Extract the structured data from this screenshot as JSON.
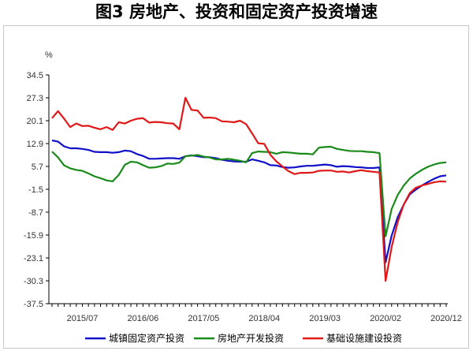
{
  "title": "图3  房地产、投资和固定资产投资增速",
  "chart_data": {
    "type": "line",
    "ylabel": "%",
    "ylim": [
      -37.5,
      34.5
    ],
    "yticks": [
      34.5,
      27.3,
      20.1,
      12.9,
      5.7,
      -1.5,
      -8.7,
      -15.9,
      -23.1,
      -30.3,
      -37.5
    ],
    "xticks": [
      "2015/07",
      "2016/06",
      "2017/05",
      "2018/04",
      "2019/03",
      "2020/02",
      "2020/12"
    ],
    "x": [
      "2015/02",
      "2015/03",
      "2015/04",
      "2015/05",
      "2015/06",
      "2015/07",
      "2015/08",
      "2015/09",
      "2015/10",
      "2015/11",
      "2015/12",
      "2016/02",
      "2016/03",
      "2016/04",
      "2016/05",
      "2016/06",
      "2016/07",
      "2016/08",
      "2016/09",
      "2016/10",
      "2016/11",
      "2016/12",
      "2017/02",
      "2017/03",
      "2017/04",
      "2017/05",
      "2017/06",
      "2017/07",
      "2017/08",
      "2017/09",
      "2017/10",
      "2017/11",
      "2017/12",
      "2018/02",
      "2018/03",
      "2018/04",
      "2018/05",
      "2018/06",
      "2018/07",
      "2018/08",
      "2018/09",
      "2018/10",
      "2018/11",
      "2018/12",
      "2019/02",
      "2019/03",
      "2019/04",
      "2019/05",
      "2019/06",
      "2019/07",
      "2019/08",
      "2019/09",
      "2019/10",
      "2019/11",
      "2019/12",
      "2020/02",
      "2020/03",
      "2020/04",
      "2020/05",
      "2020/06",
      "2020/07",
      "2020/08",
      "2020/09",
      "2020/10",
      "2020/11",
      "2020/12"
    ],
    "series": [
      {
        "name": "城镇固定资产投资",
        "color": "#1010c8",
        "values": [
          13.9,
          13.5,
          12.0,
          11.4,
          11.4,
          11.2,
          10.9,
          10.3,
          10.2,
          10.2,
          10.0,
          10.2,
          10.7,
          10.5,
          9.6,
          9.0,
          8.1,
          8.1,
          8.2,
          8.3,
          8.3,
          8.1,
          8.9,
          9.2,
          8.9,
          8.6,
          8.6,
          8.3,
          7.8,
          7.5,
          7.3,
          7.2,
          7.2,
          7.9,
          7.5,
          7.0,
          6.1,
          6.0,
          5.5,
          5.3,
          5.4,
          5.7,
          5.9,
          5.9,
          6.1,
          6.3,
          6.1,
          5.6,
          5.8,
          5.7,
          5.5,
          5.4,
          5.2,
          5.2,
          5.4,
          -24.5,
          -16.1,
          -10.3,
          -6.3,
          -3.1,
          -1.6,
          -0.3,
          0.8,
          1.8,
          2.6,
          2.9
        ]
      },
      {
        "name": "房地产开发投资",
        "color": "#1a8a1a",
        "values": [
          10.4,
          8.5,
          6.0,
          5.1,
          4.6,
          4.3,
          3.5,
          2.6,
          2.0,
          1.3,
          1.0,
          3.0,
          6.2,
          7.2,
          7.0,
          6.1,
          5.3,
          5.4,
          5.8,
          6.6,
          6.5,
          6.9,
          8.9,
          9.1,
          9.3,
          8.8,
          8.5,
          7.9,
          7.9,
          8.1,
          7.8,
          7.5,
          7.0,
          9.9,
          10.4,
          10.3,
          10.2,
          9.7,
          10.2,
          10.1,
          9.9,
          9.7,
          9.7,
          9.5,
          11.6,
          11.8,
          11.9,
          11.2,
          10.9,
          10.6,
          10.5,
          10.5,
          10.3,
          10.2,
          9.9,
          -16.3,
          -7.7,
          -3.3,
          -0.3,
          1.9,
          3.4,
          4.6,
          5.6,
          6.3,
          6.8,
          7.0
        ]
      },
      {
        "name": "基础设施建设投资",
        "color": "#e01818",
        "values": [
          20.9,
          23.1,
          20.7,
          18.1,
          19.2,
          18.4,
          18.5,
          17.9,
          17.4,
          18.1,
          17.2,
          19.6,
          19.2,
          20.1,
          20.7,
          20.9,
          19.5,
          19.7,
          19.6,
          19.3,
          19.2,
          17.4,
          27.3,
          23.5,
          23.3,
          21.0,
          21.1,
          20.9,
          19.9,
          19.8,
          19.6,
          20.1,
          19.0,
          16.1,
          13.0,
          12.8,
          9.4,
          7.3,
          5.7,
          4.2,
          3.3,
          3.7,
          3.7,
          3.8,
          4.3,
          4.4,
          4.4,
          4.0,
          4.1,
          3.8,
          4.2,
          4.5,
          4.2,
          4.0,
          3.8,
          -30.3,
          -19.7,
          -11.8,
          -6.3,
          -2.7,
          -1.0,
          -0.3,
          0.2,
          0.7,
          1.0,
          0.9
        ]
      }
    ],
    "grid": false,
    "legend": "bottom"
  }
}
